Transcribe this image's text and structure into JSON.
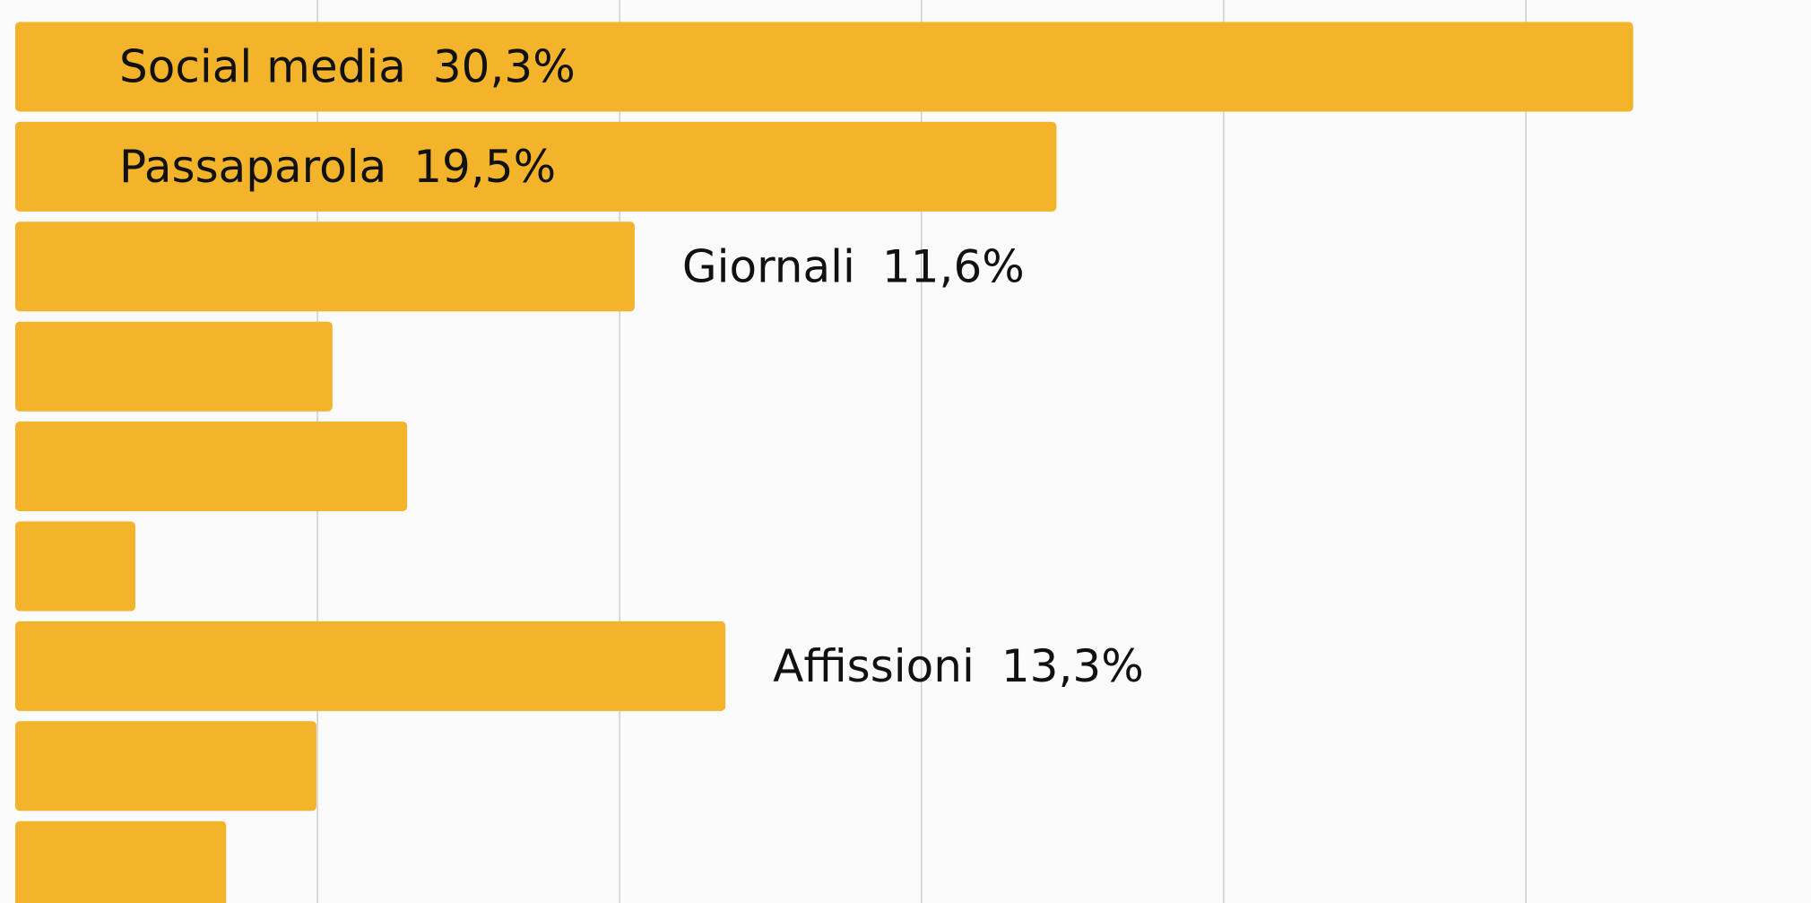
{
  "chart_data": {
    "type": "hbar",
    "categories": [
      "Social media",
      "Passaparola",
      "Giornali",
      null,
      null,
      null,
      "Affissioni",
      null,
      null
    ],
    "values": [
      30.3,
      19.5,
      11.6,
      5.94,
      7.34,
      2.25,
      13.3,
      5.64,
      3.95
    ],
    "value_labels": [
      "30,3%",
      "19,5%",
      "11,6%",
      null,
      null,
      null,
      "13,3%",
      null,
      null
    ],
    "color": "#f3b32a",
    "xlim": [
      0,
      33.63
    ],
    "xgrid": [
      5.66,
      11.32,
      16.97,
      22.63,
      28.29
    ],
    "grid": true
  }
}
